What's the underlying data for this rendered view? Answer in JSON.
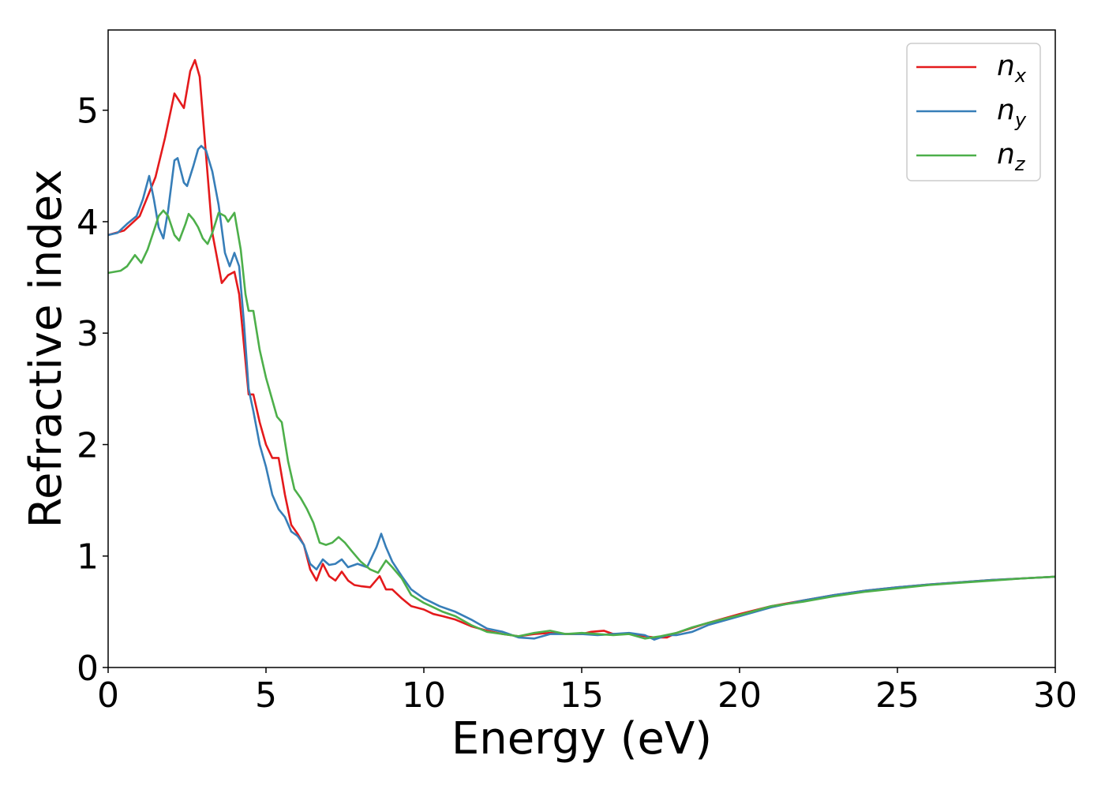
{
  "chart_data": {
    "type": "line",
    "xlabel": "Energy (eV)",
    "ylabel": "Refractive index",
    "xlim": [
      0,
      30
    ],
    "ylim": [
      0,
      5.72
    ],
    "xticks": [
      0,
      5,
      10,
      15,
      20,
      25,
      30
    ],
    "yticks": [
      0,
      1,
      2,
      3,
      4,
      5
    ],
    "xtick_labels": [
      "0",
      "5",
      "10",
      "15",
      "20",
      "25",
      "30"
    ],
    "ytick_labels": [
      "0",
      "1",
      "2",
      "3",
      "4",
      "5"
    ],
    "grid": false,
    "legend_position": "top-right",
    "series": [
      {
        "name": "n_x",
        "label_main": "n",
        "label_sub": "x",
        "color": "#e41a1c",
        "points": [
          [
            0,
            3.88
          ],
          [
            0.5,
            3.92
          ],
          [
            1.0,
            4.05
          ],
          [
            1.5,
            4.4
          ],
          [
            1.8,
            4.75
          ],
          [
            2.1,
            5.15
          ],
          [
            2.4,
            5.02
          ],
          [
            2.6,
            5.35
          ],
          [
            2.75,
            5.45
          ],
          [
            2.9,
            5.3
          ],
          [
            3.1,
            4.6
          ],
          [
            3.3,
            3.9
          ],
          [
            3.6,
            3.45
          ],
          [
            3.8,
            3.52
          ],
          [
            4.0,
            3.55
          ],
          [
            4.15,
            3.35
          ],
          [
            4.3,
            2.9
          ],
          [
            4.45,
            2.45
          ],
          [
            4.6,
            2.45
          ],
          [
            4.8,
            2.2
          ],
          [
            5.0,
            2.0
          ],
          [
            5.2,
            1.88
          ],
          [
            5.4,
            1.88
          ],
          [
            5.6,
            1.55
          ],
          [
            5.8,
            1.28
          ],
          [
            6.0,
            1.2
          ],
          [
            6.2,
            1.1
          ],
          [
            6.4,
            0.88
          ],
          [
            6.6,
            0.78
          ],
          [
            6.8,
            0.93
          ],
          [
            7.0,
            0.82
          ],
          [
            7.2,
            0.78
          ],
          [
            7.4,
            0.86
          ],
          [
            7.6,
            0.78
          ],
          [
            7.8,
            0.74
          ],
          [
            8.0,
            0.73
          ],
          [
            8.3,
            0.72
          ],
          [
            8.6,
            0.82
          ],
          [
            8.8,
            0.7
          ],
          [
            9.0,
            0.7
          ],
          [
            9.3,
            0.62
          ],
          [
            9.6,
            0.55
          ],
          [
            10.0,
            0.52
          ],
          [
            10.3,
            0.48
          ],
          [
            10.6,
            0.46
          ],
          [
            11.0,
            0.43
          ],
          [
            11.5,
            0.37
          ],
          [
            12.0,
            0.33
          ],
          [
            12.5,
            0.3
          ],
          [
            13.0,
            0.28
          ],
          [
            13.5,
            0.3
          ],
          [
            14.0,
            0.31
          ],
          [
            14.5,
            0.3
          ],
          [
            15.0,
            0.3
          ],
          [
            15.3,
            0.32
          ],
          [
            15.7,
            0.33
          ],
          [
            16.0,
            0.3
          ],
          [
            16.5,
            0.3
          ],
          [
            17.0,
            0.28
          ],
          [
            17.3,
            0.27
          ],
          [
            17.7,
            0.27
          ],
          [
            18.0,
            0.31
          ],
          [
            19.0,
            0.4
          ],
          [
            20.0,
            0.48
          ],
          [
            21.0,
            0.55
          ],
          [
            22.0,
            0.6
          ],
          [
            23.0,
            0.65
          ],
          [
            24.0,
            0.69
          ],
          [
            25.0,
            0.72
          ],
          [
            26.0,
            0.745
          ],
          [
            27.0,
            0.765
          ],
          [
            28.0,
            0.785
          ],
          [
            29.0,
            0.8
          ],
          [
            30.0,
            0.815
          ]
        ]
      },
      {
        "name": "n_y",
        "label_main": "n",
        "label_sub": "y",
        "color": "#377eb8",
        "points": [
          [
            0,
            3.88
          ],
          [
            0.3,
            3.9
          ],
          [
            0.6,
            3.98
          ],
          [
            0.9,
            4.05
          ],
          [
            1.1,
            4.2
          ],
          [
            1.3,
            4.41
          ],
          [
            1.45,
            4.2
          ],
          [
            1.6,
            3.95
          ],
          [
            1.75,
            3.85
          ],
          [
            1.9,
            4.1
          ],
          [
            2.1,
            4.55
          ],
          [
            2.2,
            4.57
          ],
          [
            2.4,
            4.35
          ],
          [
            2.5,
            4.32
          ],
          [
            2.7,
            4.5
          ],
          [
            2.85,
            4.65
          ],
          [
            2.95,
            4.68
          ],
          [
            3.1,
            4.64
          ],
          [
            3.3,
            4.45
          ],
          [
            3.5,
            4.15
          ],
          [
            3.7,
            3.72
          ],
          [
            3.85,
            3.6
          ],
          [
            4.0,
            3.72
          ],
          [
            4.15,
            3.6
          ],
          [
            4.3,
            3.1
          ],
          [
            4.45,
            2.5
          ],
          [
            4.6,
            2.3
          ],
          [
            4.8,
            2.0
          ],
          [
            5.0,
            1.8
          ],
          [
            5.2,
            1.55
          ],
          [
            5.4,
            1.42
          ],
          [
            5.6,
            1.35
          ],
          [
            5.8,
            1.22
          ],
          [
            6.0,
            1.18
          ],
          [
            6.2,
            1.1
          ],
          [
            6.4,
            0.93
          ],
          [
            6.6,
            0.88
          ],
          [
            6.8,
            0.97
          ],
          [
            7.0,
            0.92
          ],
          [
            7.2,
            0.93
          ],
          [
            7.4,
            0.97
          ],
          [
            7.6,
            0.9
          ],
          [
            7.9,
            0.93
          ],
          [
            8.2,
            0.9
          ],
          [
            8.5,
            1.08
          ],
          [
            8.65,
            1.2
          ],
          [
            8.8,
            1.08
          ],
          [
            9.0,
            0.95
          ],
          [
            9.3,
            0.82
          ],
          [
            9.6,
            0.7
          ],
          [
            10.0,
            0.62
          ],
          [
            10.5,
            0.55
          ],
          [
            11.0,
            0.5
          ],
          [
            11.5,
            0.43
          ],
          [
            12.0,
            0.35
          ],
          [
            12.5,
            0.32
          ],
          [
            13.0,
            0.27
          ],
          [
            13.5,
            0.26
          ],
          [
            14.0,
            0.3
          ],
          [
            14.5,
            0.3
          ],
          [
            15.0,
            0.3
          ],
          [
            15.5,
            0.29
          ],
          [
            16.0,
            0.3
          ],
          [
            16.5,
            0.31
          ],
          [
            17.0,
            0.29
          ],
          [
            17.3,
            0.25
          ],
          [
            17.7,
            0.29
          ],
          [
            18.0,
            0.29
          ],
          [
            18.5,
            0.32
          ],
          [
            19.0,
            0.38
          ],
          [
            20.0,
            0.46
          ],
          [
            21.0,
            0.54
          ],
          [
            22.0,
            0.6
          ],
          [
            23.0,
            0.65
          ],
          [
            24.0,
            0.69
          ],
          [
            25.0,
            0.72
          ],
          [
            26.0,
            0.745
          ],
          [
            27.0,
            0.765
          ],
          [
            28.0,
            0.785
          ],
          [
            29.0,
            0.8
          ],
          [
            30.0,
            0.815
          ]
        ]
      },
      {
        "name": "n_z",
        "label_main": "n",
        "label_sub": "z",
        "color": "#4daf4a",
        "points": [
          [
            0,
            3.54
          ],
          [
            0.4,
            3.56
          ],
          [
            0.6,
            3.6
          ],
          [
            0.85,
            3.7
          ],
          [
            1.05,
            3.63
          ],
          [
            1.25,
            3.75
          ],
          [
            1.45,
            3.92
          ],
          [
            1.6,
            4.05
          ],
          [
            1.75,
            4.1
          ],
          [
            1.9,
            4.05
          ],
          [
            2.1,
            3.88
          ],
          [
            2.25,
            3.83
          ],
          [
            2.45,
            3.98
          ],
          [
            2.55,
            4.07
          ],
          [
            2.7,
            4.02
          ],
          [
            2.85,
            3.95
          ],
          [
            3.0,
            3.85
          ],
          [
            3.15,
            3.8
          ],
          [
            3.3,
            3.9
          ],
          [
            3.5,
            4.08
          ],
          [
            3.7,
            4.05
          ],
          [
            3.8,
            4.0
          ],
          [
            4.0,
            4.08
          ],
          [
            4.2,
            3.75
          ],
          [
            4.35,
            3.35
          ],
          [
            4.45,
            3.2
          ],
          [
            4.6,
            3.2
          ],
          [
            4.8,
            2.85
          ],
          [
            5.0,
            2.6
          ],
          [
            5.2,
            2.4
          ],
          [
            5.35,
            2.25
          ],
          [
            5.5,
            2.2
          ],
          [
            5.7,
            1.85
          ],
          [
            5.9,
            1.6
          ],
          [
            6.1,
            1.52
          ],
          [
            6.3,
            1.42
          ],
          [
            6.5,
            1.3
          ],
          [
            6.7,
            1.12
          ],
          [
            6.9,
            1.1
          ],
          [
            7.1,
            1.12
          ],
          [
            7.3,
            1.17
          ],
          [
            7.5,
            1.12
          ],
          [
            7.7,
            1.05
          ],
          [
            8.0,
            0.95
          ],
          [
            8.3,
            0.88
          ],
          [
            8.55,
            0.85
          ],
          [
            8.8,
            0.96
          ],
          [
            9.0,
            0.9
          ],
          [
            9.3,
            0.8
          ],
          [
            9.6,
            0.65
          ],
          [
            10.0,
            0.58
          ],
          [
            10.3,
            0.54
          ],
          [
            10.6,
            0.5
          ],
          [
            11.0,
            0.46
          ],
          [
            11.5,
            0.38
          ],
          [
            12.0,
            0.32
          ],
          [
            12.5,
            0.3
          ],
          [
            13.0,
            0.28
          ],
          [
            13.5,
            0.31
          ],
          [
            14.0,
            0.33
          ],
          [
            14.5,
            0.3
          ],
          [
            15.0,
            0.31
          ],
          [
            15.5,
            0.3
          ],
          [
            16.0,
            0.29
          ],
          [
            16.5,
            0.3
          ],
          [
            17.0,
            0.26
          ],
          [
            17.5,
            0.28
          ],
          [
            18.0,
            0.31
          ],
          [
            18.5,
            0.36
          ],
          [
            19.0,
            0.4
          ],
          [
            20.0,
            0.47
          ],
          [
            21.0,
            0.55
          ],
          [
            22.0,
            0.59
          ],
          [
            23.0,
            0.64
          ],
          [
            24.0,
            0.68
          ],
          [
            25.0,
            0.71
          ],
          [
            26.0,
            0.74
          ],
          [
            27.0,
            0.76
          ],
          [
            28.0,
            0.78
          ],
          [
            29.0,
            0.8
          ],
          [
            30.0,
            0.815
          ]
        ]
      }
    ]
  }
}
